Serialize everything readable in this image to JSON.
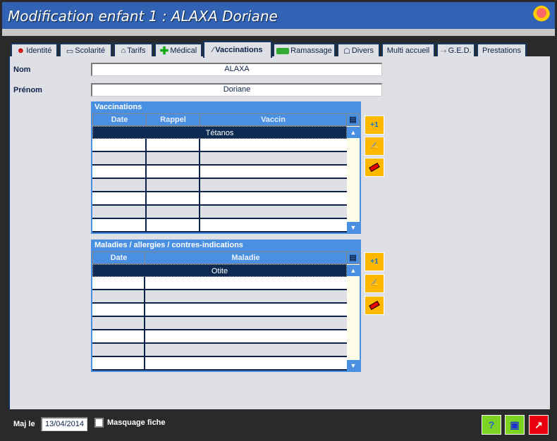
{
  "window": {
    "title": "Modification enfant 1 : ALAXA Doriane",
    "logo": "cartoon-face-logo"
  },
  "tabs": [
    {
      "label": "Identité",
      "icon": "person-icon"
    },
    {
      "label": "Scolarité",
      "icon": "school-board-icon"
    },
    {
      "label": "Tarifs",
      "icon": "price-tag-icon"
    },
    {
      "label": "Médical",
      "icon": "green-cross-icon"
    },
    {
      "label": "Vaccinations",
      "icon": "syringe-icon",
      "active": true
    },
    {
      "label": "Ramassage",
      "icon": "bus-icon"
    },
    {
      "label": "Divers",
      "icon": "misc-icon"
    },
    {
      "label": "Multi accueil"
    },
    {
      "label": "G.E.D.",
      "icon": "document-link-icon"
    },
    {
      "label": "Prestations"
    }
  ],
  "form": {
    "nom_label": "Nom",
    "nom_value": "ALAXA",
    "prenom_label": "Prénom",
    "prenom_value": "Doriane"
  },
  "vaccinations": {
    "title": "Vaccinations",
    "columns": [
      "Date",
      "Rappel",
      "Vaccin"
    ],
    "rows": [
      {
        "date": "",
        "rappel": "",
        "vaccin": "Tétanos"
      }
    ]
  },
  "maladies": {
    "title": "Maladies / allergies / contres-indications",
    "columns": [
      "Date",
      "Maladie"
    ],
    "rows": [
      {
        "date": "",
        "maladie": "Otite"
      }
    ]
  },
  "actions": {
    "add_label": "+1",
    "add_color": "#00a0e0"
  },
  "footer": {
    "maj_label": "Maj le",
    "maj_value": "13/04/2014",
    "masquage_label": "Masquage fiche",
    "masquage_checked": false
  },
  "colors": {
    "title_bar": "#3162b4",
    "grid_header": "#4a90e2",
    "selected_row": "#0d2a52",
    "action_button": "#ffb800",
    "help_button": "#7dd321",
    "close_button": "#e8000e"
  }
}
